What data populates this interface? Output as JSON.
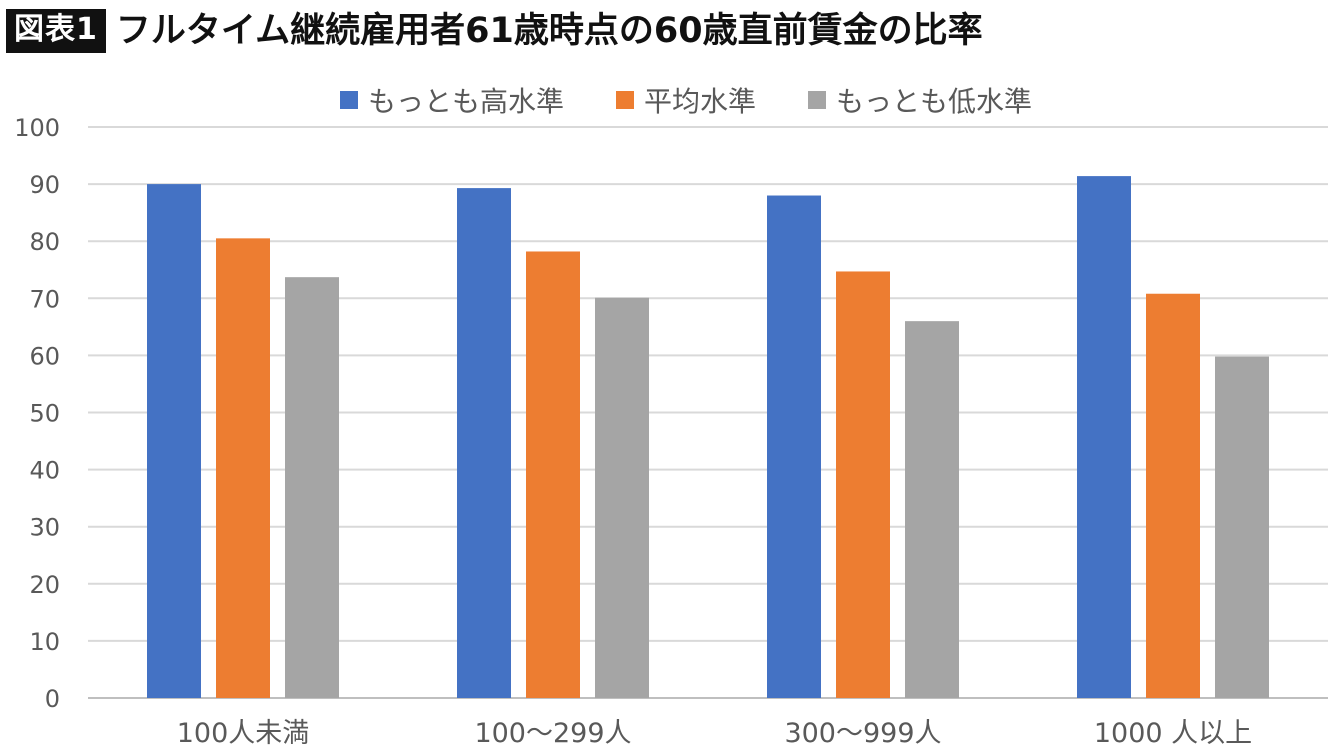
{
  "header": {
    "badge": "図表1",
    "title": "フルタイム継続雇用者61歳時点の60歳直前賃金の比率"
  },
  "chart_data": {
    "type": "bar",
    "title": "フルタイム継続雇用者61歳時点の60歳直前賃金の比率",
    "categories": [
      "100人未満",
      "100〜299人",
      "300〜999人",
      "1000 人以上"
    ],
    "series": [
      {
        "name": "もっとも高水準",
        "color": "#4472c4",
        "values": [
          90,
          89.3,
          88,
          91.4
        ]
      },
      {
        "name": "平均水準",
        "color": "#ed7d31",
        "values": [
          80.5,
          78.2,
          74.7,
          70.8
        ]
      },
      {
        "name": "もっとも低水準",
        "color": "#a5a5a5",
        "values": [
          73.7,
          70.1,
          66,
          59.8
        ]
      }
    ],
    "ylim": [
      0,
      100
    ],
    "yticks": [
      0,
      10,
      20,
      30,
      40,
      50,
      60,
      70,
      80,
      90,
      100
    ],
    "xlabel": "",
    "ylabel": "",
    "grid": true,
    "legend_position": "top"
  }
}
